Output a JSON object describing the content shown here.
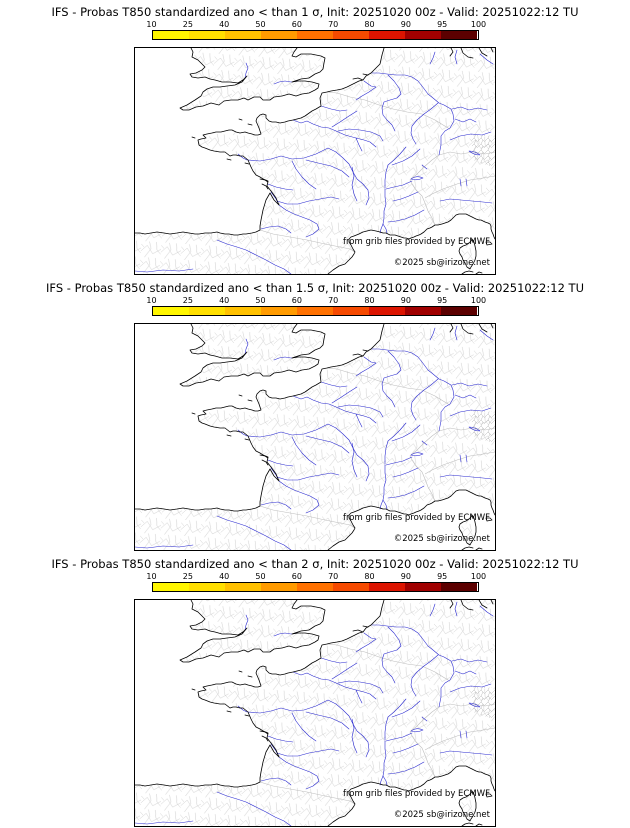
{
  "panels": [
    {
      "title": "IFS - Probas T850  standardized ano < than 1 σ, Init: 20251020 00z - Valid: 20251022:12 TU",
      "attribution": "from grib files provided by ECMWF",
      "copyright": "©2025 sb@irizone.net"
    },
    {
      "title": "IFS - Probas T850  standardized ano < than 1.5 σ, Init: 20251020 00z - Valid: 20251022:12 TU",
      "attribution": "from grib files provided by ECMWF",
      "copyright": "©2025 sb@irizone.net"
    },
    {
      "title": "IFS - Probas T850  standardized ano < than 2 σ, Init: 20251020 00z - Valid: 20251022:12 TU",
      "attribution": "from grib files provided by ECMWF",
      "copyright": "©2025 sb@irizone.net"
    }
  ],
  "colorbar": {
    "ticks": [
      "10",
      "25",
      "40",
      "50",
      "60",
      "70",
      "80",
      "90",
      "95",
      "100"
    ],
    "segment_colors": [
      "#fff600",
      "#ffdf00",
      "#ffc100",
      "#ff9b00",
      "#ff7100",
      "#f64a00",
      "#dc1400",
      "#a00000",
      "#5c0000"
    ]
  },
  "map": {
    "background": "#ffffff",
    "coastline_color": "#000000",
    "river_color": "#2a2ad0",
    "boundary_color": "#c9c9c9"
  }
}
